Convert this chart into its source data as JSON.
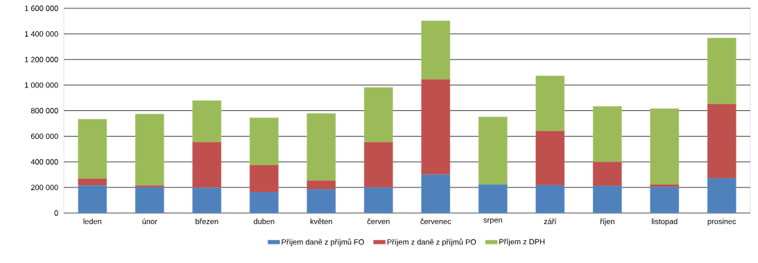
{
  "chart_data": {
    "type": "bar",
    "stacked": true,
    "grid": "y",
    "legend": "bottom",
    "categories": [
      "leden",
      "únor",
      "březen",
      "duben",
      "květen",
      "červen",
      "červenec",
      "srpen",
      "září",
      "říjen",
      "listopad",
      "prosinec"
    ],
    "ylim": [
      0,
      1600000
    ],
    "yticks": [
      0,
      {
        "value": 200000,
        "label": "200 000"
      },
      {
        "value": 400000,
        "label": "400 000"
      },
      {
        "value": 600000,
        "label": "600 000"
      },
      {
        "value": 800000,
        "label": "800 000"
      },
      {
        "value": 1000000,
        "label": "1 000 000"
      },
      {
        "value": 1200000,
        "label": "1 200 000"
      },
      {
        "value": 1400000,
        "label": "1 400 000"
      },
      {
        "value": 1600000,
        "label": "1 600 000"
      }
    ],
    "series": [
      {
        "name": "Příjem daně z příjmů FO",
        "color": "#4f81bd",
        "values": [
          215000,
          200000,
          197000,
          162000,
          184000,
          200000,
          300000,
          222000,
          217000,
          211000,
          204000,
          271000
        ]
      },
      {
        "name": "Příjem z daně z příjmů PO",
        "color": "#c0504d",
        "values": [
          54000,
          15000,
          357000,
          212000,
          69000,
          354000,
          745000,
          0,
          424000,
          188000,
          18000,
          581000
        ]
      },
      {
        "name": "Příjem z DPH",
        "color": "#9bbb59",
        "values": [
          464000,
          559000,
          325000,
          370000,
          525000,
          428000,
          457000,
          529000,
          431000,
          435000,
          594000,
          516000
        ]
      }
    ]
  }
}
